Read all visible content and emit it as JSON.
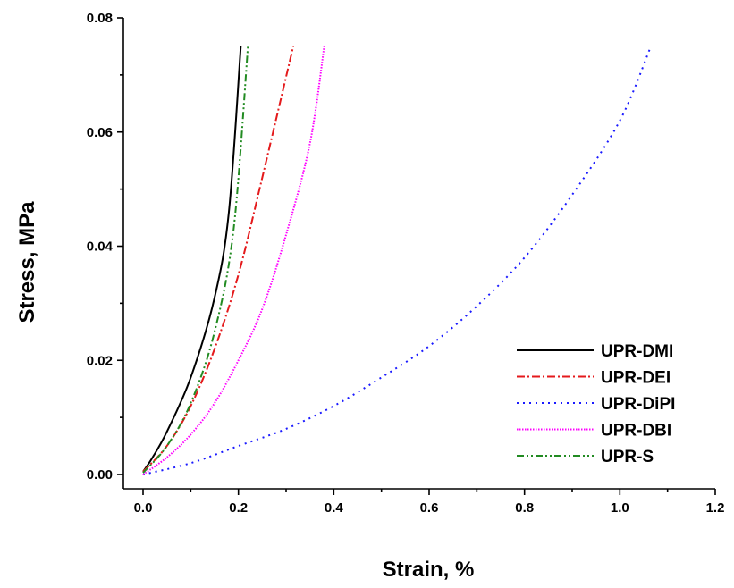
{
  "chart_data": {
    "type": "line",
    "title": "",
    "xlabel": "Strain, %",
    "ylabel": "Stress, MPa",
    "xlim": [
      0.0,
      1.2
    ],
    "ylim": [
      0.0,
      0.08
    ],
    "x_ticks": [
      "0.0",
      "0.2",
      "0.4",
      "0.6",
      "0.8",
      "1.0",
      "1.2"
    ],
    "y_ticks": [
      "0.00",
      "0.02",
      "0.04",
      "0.06",
      "0.08"
    ],
    "grid": false,
    "legend_position": "bottom-right",
    "series": [
      {
        "name": "UPR-DMI",
        "color": "#000000",
        "dash": "solid",
        "points": [
          [
            0.0,
            0.0005
          ],
          [
            0.02,
            0.003
          ],
          [
            0.05,
            0.0075
          ],
          [
            0.1,
            0.017
          ],
          [
            0.15,
            0.031
          ],
          [
            0.18,
            0.046
          ],
          [
            0.205,
            0.075
          ]
        ]
      },
      {
        "name": "UPR-DEI",
        "color": "#e41a1c",
        "dash": "dash-dot",
        "points": [
          [
            0.0,
            0.0005
          ],
          [
            0.05,
            0.005
          ],
          [
            0.1,
            0.012
          ],
          [
            0.15,
            0.022
          ],
          [
            0.2,
            0.035
          ],
          [
            0.25,
            0.052
          ],
          [
            0.315,
            0.075
          ]
        ]
      },
      {
        "name": "UPR-DiPI",
        "color": "#1a1aff",
        "dash": "dot",
        "points": [
          [
            0.0,
            0.0
          ],
          [
            0.1,
            0.002
          ],
          [
            0.2,
            0.005
          ],
          [
            0.3,
            0.008
          ],
          [
            0.4,
            0.012
          ],
          [
            0.5,
            0.017
          ],
          [
            0.6,
            0.0225
          ],
          [
            0.7,
            0.0295
          ],
          [
            0.8,
            0.038
          ],
          [
            0.9,
            0.049
          ],
          [
            1.0,
            0.062
          ],
          [
            1.065,
            0.075
          ]
        ]
      },
      {
        "name": "UPR-DBI",
        "color": "#ff00ff",
        "dash": "dense-dot",
        "points": [
          [
            0.0,
            0.0
          ],
          [
            0.05,
            0.003
          ],
          [
            0.1,
            0.007
          ],
          [
            0.15,
            0.0125
          ],
          [
            0.2,
            0.02
          ],
          [
            0.25,
            0.029
          ],
          [
            0.3,
            0.042
          ],
          [
            0.35,
            0.058
          ],
          [
            0.38,
            0.075
          ]
        ]
      },
      {
        "name": "UPR-S",
        "color": "#228b22",
        "dash": "dash-dot-dot",
        "points": [
          [
            0.0,
            0.0003
          ],
          [
            0.05,
            0.005
          ],
          [
            0.1,
            0.0125
          ],
          [
            0.15,
            0.025
          ],
          [
            0.19,
            0.043
          ],
          [
            0.22,
            0.075
          ]
        ]
      }
    ]
  }
}
